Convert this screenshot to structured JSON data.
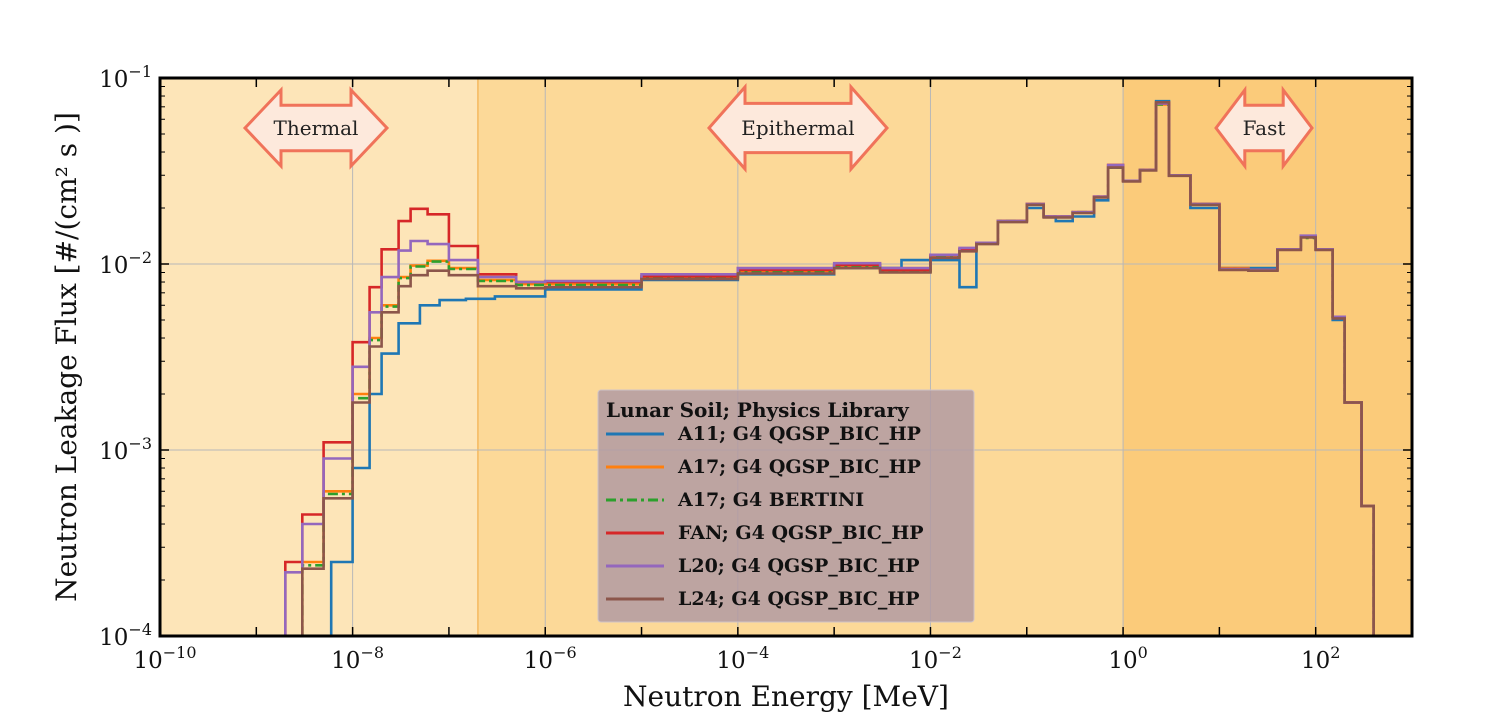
{
  "chart_data": {
    "type": "line",
    "xlabel": "Neutron Energy [MeV]",
    "ylabel": "Neutron Leakage Flux [#/(cm² s )]",
    "xscale": "log",
    "yscale": "log",
    "xlim": [
      1e-10,
      1000
    ],
    "ylim": [
      0.0001,
      0.1
    ],
    "x_ticks": [
      {
        "base": "10",
        "exp": "−10"
      },
      {
        "base": "10",
        "exp": "−8"
      },
      {
        "base": "10",
        "exp": "−6"
      },
      {
        "base": "10",
        "exp": "−4"
      },
      {
        "base": "10",
        "exp": "−2"
      },
      {
        "base": "10",
        "exp": "0"
      },
      {
        "base": "10",
        "exp": "2"
      }
    ],
    "y_ticks": [
      {
        "base": "10",
        "exp": "−4"
      },
      {
        "base": "10",
        "exp": "−3"
      },
      {
        "base": "10",
        "exp": "−2"
      },
      {
        "base": "10",
        "exp": "−1"
      }
    ],
    "grid": true,
    "regions": [
      {
        "name": "Thermal",
        "from": 1e-10,
        "to": 2e-07,
        "color": "#fde5b8"
      },
      {
        "name": "Epithermal",
        "from": 2e-07,
        "to": 1,
        "color": "#fcd998"
      },
      {
        "name": "Fast",
        "from": 1,
        "to": 1000,
        "color": "#fbcb7a"
      }
    ],
    "legend": {
      "title": "Lunar Soil; Physics Library",
      "placement": "lower-center"
    },
    "series": [
      {
        "name": "A11; G4 QGSP_BIC_HP",
        "color": "#1f77b4",
        "dash": "solid",
        "x": [
          4e-09,
          6e-09,
          1e-08,
          1.5e-08,
          2e-08,
          3e-08,
          5e-08,
          8e-08,
          1.5e-07,
          3e-07,
          1e-06,
          1e-05,
          0.0001,
          0.001,
          0.005,
          0.01,
          0.02,
          0.03,
          0.05,
          0.1,
          0.15,
          0.2,
          0.3,
          0.5,
          0.7,
          1,
          1.5,
          2.2,
          3,
          5,
          10,
          20,
          40,
          70,
          100,
          150,
          200,
          300,
          400
        ],
        "y": [
          0.0001,
          0.00025,
          0.0008,
          0.002,
          0.0033,
          0.0048,
          0.006,
          0.0064,
          0.0065,
          0.0067,
          0.0073,
          0.0082,
          0.0088,
          0.0095,
          0.0105,
          0.0105,
          0.0075,
          0.013,
          0.017,
          0.02,
          0.018,
          0.017,
          0.018,
          0.022,
          0.033,
          0.028,
          0.032,
          0.075,
          0.03,
          0.02,
          0.0095,
          0.0095,
          0.012,
          0.014,
          0.012,
          0.005,
          0.0018,
          0.0005,
          0.0001
        ]
      },
      {
        "name": "A17; G4 QGSP_BIC_HP",
        "color": "#ff7f0e",
        "dash": "solid",
        "x": [
          1.8e-09,
          3e-09,
          5e-09,
          1e-08,
          1.5e-08,
          2e-08,
          3e-08,
          4e-08,
          6e-08,
          1e-07,
          2e-07,
          5e-07,
          1e-06,
          1e-05,
          0.0001,
          0.001,
          0.003,
          0.01,
          0.02,
          0.03,
          0.05,
          0.1,
          0.15,
          0.2,
          0.3,
          0.5,
          0.7,
          1,
          1.5,
          2.2,
          3,
          5,
          10,
          20,
          40,
          70,
          100,
          150,
          200,
          300,
          400
        ],
        "y": [
          0.0001,
          0.00025,
          0.0006,
          0.002,
          0.004,
          0.006,
          0.0085,
          0.0098,
          0.0104,
          0.0095,
          0.0082,
          0.0078,
          0.0078,
          0.0085,
          0.0092,
          0.0098,
          0.0092,
          0.011,
          0.012,
          0.013,
          0.017,
          0.021,
          0.018,
          0.018,
          0.019,
          0.023,
          0.034,
          0.028,
          0.032,
          0.072,
          0.03,
          0.021,
          0.0095,
          0.0093,
          0.012,
          0.014,
          0.012,
          0.0052,
          0.0018,
          0.0005,
          0.0001
        ]
      },
      {
        "name": "A17; G4 BERTINI",
        "color": "#2ca02c",
        "dash": "dashdot",
        "x": [
          1.8e-09,
          3e-09,
          5e-09,
          1e-08,
          1.5e-08,
          2e-08,
          3e-08,
          4e-08,
          6e-08,
          1e-07,
          2e-07,
          5e-07,
          1e-06,
          1e-05,
          0.0001,
          0.001,
          0.003,
          0.01,
          0.02,
          0.03,
          0.05,
          0.1,
          0.15,
          0.2,
          0.3,
          0.5,
          0.7,
          1,
          1.5,
          2.2,
          3,
          5,
          10,
          20,
          40,
          70,
          100,
          150,
          200,
          300,
          400
        ],
        "y": [
          0.0001,
          0.00024,
          0.00058,
          0.0019,
          0.0039,
          0.0059,
          0.0084,
          0.0097,
          0.0103,
          0.0094,
          0.0081,
          0.0077,
          0.0077,
          0.0084,
          0.0091,
          0.0097,
          0.0091,
          0.011,
          0.0118,
          0.013,
          0.017,
          0.021,
          0.018,
          0.018,
          0.019,
          0.023,
          0.033,
          0.028,
          0.032,
          0.072,
          0.03,
          0.021,
          0.0094,
          0.0093,
          0.012,
          0.0138,
          0.012,
          0.0052,
          0.0018,
          0.0005,
          0.0001
        ]
      },
      {
        "name": "FAN; G4 QGSP_BIC_HP",
        "color": "#d62728",
        "dash": "solid",
        "x": [
          1e-09,
          2e-09,
          3e-09,
          5e-09,
          1e-08,
          1.5e-08,
          2e-08,
          3e-08,
          4e-08,
          6e-08,
          1e-07,
          2e-07,
          5e-07,
          1e-06,
          1e-05,
          0.0001,
          0.001,
          0.003,
          0.01,
          0.02,
          0.03,
          0.05,
          0.1,
          0.15,
          0.2,
          0.3,
          0.5,
          0.7,
          1,
          1.5,
          2.2,
          3,
          5,
          10,
          20,
          40,
          70,
          100,
          150,
          200,
          300,
          400
        ],
        "y": [
          0.0001,
          0.00025,
          0.00045,
          0.0011,
          0.0038,
          0.0075,
          0.012,
          0.017,
          0.0198,
          0.0185,
          0.0125,
          0.0088,
          0.008,
          0.008,
          0.0086,
          0.0093,
          0.0099,
          0.0093,
          0.0112,
          0.012,
          0.013,
          0.017,
          0.021,
          0.018,
          0.018,
          0.019,
          0.023,
          0.034,
          0.028,
          0.032,
          0.073,
          0.03,
          0.021,
          0.0094,
          0.0093,
          0.012,
          0.014,
          0.012,
          0.0052,
          0.0018,
          0.0005,
          0.0001
        ]
      },
      {
        "name": "L20; G4 QGSP_BIC_HP",
        "color": "#9467bd",
        "dash": "solid",
        "x": [
          1.2e-09,
          2e-09,
          3e-09,
          5e-09,
          1e-08,
          1.5e-08,
          2e-08,
          3e-08,
          4e-08,
          6e-08,
          1e-07,
          2e-07,
          5e-07,
          1e-06,
          1e-05,
          0.0001,
          0.001,
          0.003,
          0.01,
          0.02,
          0.03,
          0.05,
          0.1,
          0.15,
          0.2,
          0.3,
          0.5,
          0.7,
          1,
          1.5,
          2.2,
          3,
          5,
          10,
          20,
          40,
          70,
          100,
          150,
          200,
          300,
          400
        ],
        "y": [
          0.0001,
          0.00022,
          0.0004,
          0.0009,
          0.0028,
          0.0055,
          0.0085,
          0.0118,
          0.0133,
          0.0128,
          0.0105,
          0.0085,
          0.008,
          0.0081,
          0.0088,
          0.0095,
          0.0101,
          0.0095,
          0.0112,
          0.0122,
          0.013,
          0.017,
          0.021,
          0.018,
          0.018,
          0.019,
          0.023,
          0.034,
          0.028,
          0.032,
          0.073,
          0.03,
          0.021,
          0.0094,
          0.0093,
          0.012,
          0.0142,
          0.012,
          0.0052,
          0.0018,
          0.0005,
          0.0001
        ]
      },
      {
        "name": "L24; G4 QGSP_BIC_HP",
        "color": "#8c564b",
        "dash": "solid",
        "x": [
          1.8e-09,
          3e-09,
          5e-09,
          1e-08,
          1.5e-08,
          2e-08,
          3e-08,
          4e-08,
          6e-08,
          1e-07,
          2e-07,
          5e-07,
          1e-06,
          1e-05,
          0.0001,
          0.001,
          0.003,
          0.01,
          0.02,
          0.03,
          0.05,
          0.1,
          0.15,
          0.2,
          0.3,
          0.5,
          0.7,
          1,
          1.5,
          2.2,
          3,
          5,
          10,
          20,
          40,
          70,
          100,
          150,
          200,
          300,
          400
        ],
        "y": [
          0.0001,
          0.00023,
          0.00055,
          0.0018,
          0.0036,
          0.0055,
          0.0076,
          0.0087,
          0.0092,
          0.0087,
          0.0076,
          0.0074,
          0.0075,
          0.0083,
          0.0089,
          0.0095,
          0.009,
          0.0108,
          0.0117,
          0.0128,
          0.0168,
          0.0208,
          0.0178,
          0.0178,
          0.0188,
          0.0228,
          0.033,
          0.0278,
          0.0318,
          0.074,
          0.0298,
          0.0208,
          0.0093,
          0.0092,
          0.0119,
          0.0139,
          0.0119,
          0.0051,
          0.0018,
          0.0005,
          0.0001
        ]
      }
    ]
  }
}
